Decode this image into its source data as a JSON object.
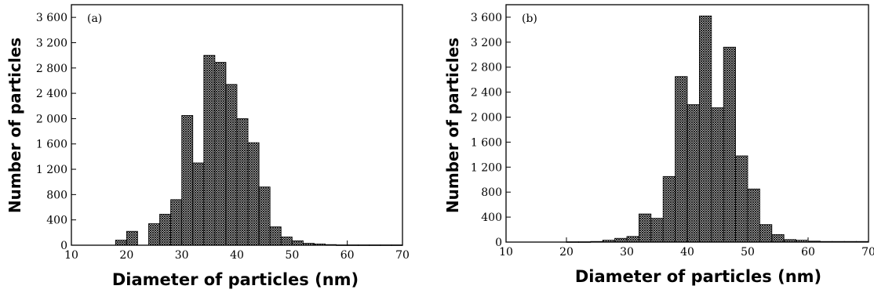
{
  "chart_data": [
    {
      "type": "bar",
      "panel_label": "(a)",
      "xlabel": "Diameter of particles (nm)",
      "ylabel": "Number of particles",
      "xlim": [
        10,
        70
      ],
      "ylim": [
        0,
        3800
      ],
      "xticks": [
        10,
        20,
        30,
        40,
        50,
        60,
        70
      ],
      "yticks": [
        0,
        400,
        800,
        1200,
        1600,
        2000,
        2400,
        2800,
        3200,
        3600
      ],
      "ytick_labels": [
        "0",
        "400",
        "800",
        "1 200",
        "1 600",
        "2 000",
        "2 400",
        "2 800",
        "3 200",
        "3 600"
      ],
      "bin_width": 2,
      "bins": [
        {
          "x": 18,
          "y": 80
        },
        {
          "x": 20,
          "y": 220
        },
        {
          "x": 22,
          "y": 0
        },
        {
          "x": 24,
          "y": 340
        },
        {
          "x": 26,
          "y": 490
        },
        {
          "x": 28,
          "y": 720
        },
        {
          "x": 30,
          "y": 2050
        },
        {
          "x": 32,
          "y": 1300
        },
        {
          "x": 34,
          "y": 3000
        },
        {
          "x": 36,
          "y": 2890
        },
        {
          "x": 38,
          "y": 2540
        },
        {
          "x": 40,
          "y": 2000
        },
        {
          "x": 42,
          "y": 1620
        },
        {
          "x": 44,
          "y": 920
        },
        {
          "x": 46,
          "y": 290
        },
        {
          "x": 48,
          "y": 130
        },
        {
          "x": 50,
          "y": 70
        },
        {
          "x": 52,
          "y": 30
        },
        {
          "x": 54,
          "y": 20
        },
        {
          "x": 56,
          "y": 10
        },
        {
          "x": 58,
          "y": 5
        },
        {
          "x": 60,
          "y": 5
        },
        {
          "x": 62,
          "y": 5
        },
        {
          "x": 64,
          "y": 5
        },
        {
          "x": 66,
          "y": 5
        },
        {
          "x": 68,
          "y": 5
        }
      ]
    },
    {
      "type": "bar",
      "panel_label": "(b)",
      "xlabel": "Diameter of particles (nm)",
      "ylabel": "Number of particles",
      "xlim": [
        10,
        70
      ],
      "ylim": [
        0,
        3800
      ],
      "xticks": [
        10,
        20,
        30,
        40,
        50,
        60,
        70
      ],
      "yticks": [
        0,
        400,
        800,
        1200,
        1600,
        2000,
        2400,
        2800,
        3200,
        3600
      ],
      "ytick_labels": [
        "0",
        "400",
        "800",
        "1 200",
        "1 600",
        "2 000",
        "2 400",
        "2 800",
        "3 200",
        "3 600"
      ],
      "bin_width": 2,
      "bins": [
        {
          "x": 20,
          "y": 5
        },
        {
          "x": 22,
          "y": 5
        },
        {
          "x": 24,
          "y": 10
        },
        {
          "x": 26,
          "y": 30
        },
        {
          "x": 28,
          "y": 60
        },
        {
          "x": 30,
          "y": 90
        },
        {
          "x": 32,
          "y": 450
        },
        {
          "x": 34,
          "y": 380
        },
        {
          "x": 36,
          "y": 1050
        },
        {
          "x": 38,
          "y": 2650
        },
        {
          "x": 40,
          "y": 2200
        },
        {
          "x": 42,
          "y": 3620
        },
        {
          "x": 44,
          "y": 2150
        },
        {
          "x": 46,
          "y": 3120
        },
        {
          "x": 48,
          "y": 1380
        },
        {
          "x": 50,
          "y": 850
        },
        {
          "x": 52,
          "y": 280
        },
        {
          "x": 54,
          "y": 120
        },
        {
          "x": 56,
          "y": 40
        },
        {
          "x": 58,
          "y": 30
        },
        {
          "x": 60,
          "y": 15
        },
        {
          "x": 62,
          "y": 10
        },
        {
          "x": 64,
          "y": 10
        },
        {
          "x": 66,
          "y": 10
        },
        {
          "x": 68,
          "y": 10
        }
      ]
    }
  ]
}
